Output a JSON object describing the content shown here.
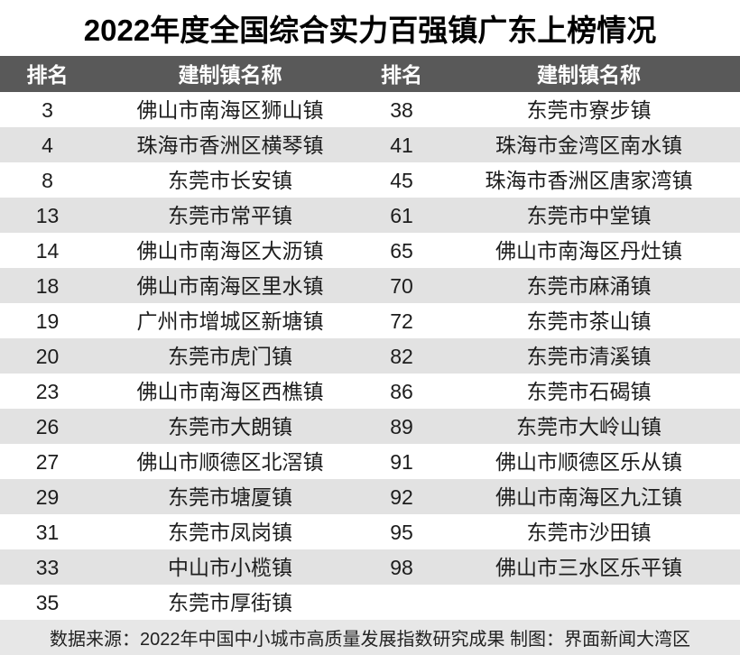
{
  "title": "2022年度全国综合实力百强镇广东上榜情况",
  "table": {
    "headers": [
      "排名",
      "建制镇名称",
      "排名",
      "建制镇名称"
    ],
    "rows": [
      {
        "rank1": "3",
        "town1": "佛山市南海区狮山镇",
        "rank2": "38",
        "town2": "东莞市寮步镇"
      },
      {
        "rank1": "4",
        "town1": "珠海市香洲区横琴镇",
        "rank2": "41",
        "town2": "珠海市金湾区南水镇"
      },
      {
        "rank1": "8",
        "town1": "东莞市长安镇",
        "rank2": "45",
        "town2": "珠海市香洲区唐家湾镇"
      },
      {
        "rank1": "13",
        "town1": "东莞市常平镇",
        "rank2": "61",
        "town2": "东莞市中堂镇"
      },
      {
        "rank1": "14",
        "town1": "佛山市南海区大沥镇",
        "rank2": "65",
        "town2": "佛山市南海区丹灶镇"
      },
      {
        "rank1": "18",
        "town1": "佛山市南海区里水镇",
        "rank2": "70",
        "town2": "东莞市麻涌镇"
      },
      {
        "rank1": "19",
        "town1": "广州市增城区新塘镇",
        "rank2": "72",
        "town2": "东莞市茶山镇"
      },
      {
        "rank1": "20",
        "town1": "东莞市虎门镇",
        "rank2": "82",
        "town2": "东莞市清溪镇"
      },
      {
        "rank1": "23",
        "town1": "佛山市南海区西樵镇",
        "rank2": "86",
        "town2": "东莞市石碣镇"
      },
      {
        "rank1": "26",
        "town1": "东莞市大朗镇",
        "rank2": "89",
        "town2": "东莞市大岭山镇"
      },
      {
        "rank1": "27",
        "town1": "佛山市顺德区北滘镇",
        "rank2": "91",
        "town2": "佛山市顺德区乐从镇"
      },
      {
        "rank1": "29",
        "town1": "东莞市塘厦镇",
        "rank2": "92",
        "town2": "佛山市南海区九江镇"
      },
      {
        "rank1": "31",
        "town1": "东莞市凤岗镇",
        "rank2": "95",
        "town2": "东莞市沙田镇"
      },
      {
        "rank1": "33",
        "town1": "中山市小榄镇",
        "rank2": "98",
        "town2": "佛山市三水区乐平镇"
      },
      {
        "rank1": "35",
        "town1": "东莞市厚街镇",
        "rank2": "",
        "town2": ""
      }
    ]
  },
  "footer": {
    "text": "数据来源：2022年中国中小城市高质量发展指数研究成果 制图：界面新闻大湾区"
  },
  "colors": {
    "header_bg": "#595959",
    "stripe_bg": "#e2e2e2",
    "footer_bg": "#e7e7e7",
    "title_color": "#000000",
    "header_text": "#ffffff",
    "body_text": "#1d1d1d"
  }
}
